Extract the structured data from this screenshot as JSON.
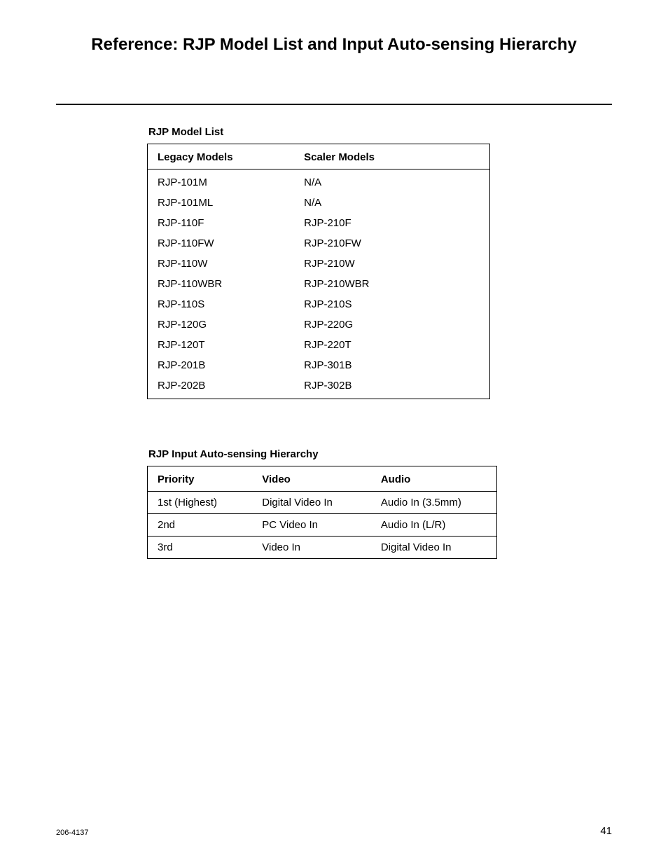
{
  "page": {
    "title": "Reference: RJP Model List and Input Auto-sensing Hierarchy",
    "doc_number": "206-4137",
    "page_number": "41"
  },
  "model_list": {
    "title": "RJP Model List",
    "columns": [
      "Legacy Models",
      "Scaler Models"
    ],
    "rows": [
      [
        "RJP-101M",
        "N/A"
      ],
      [
        "RJP-101ML",
        "N/A"
      ],
      [
        "RJP-110F",
        "RJP-210F"
      ],
      [
        "RJP-110FW",
        "RJP-210FW"
      ],
      [
        "RJP-110W",
        "RJP-210W"
      ],
      [
        "RJP-110WBR",
        "RJP-210WBR"
      ],
      [
        "RJP-110S",
        "RJP-210S"
      ],
      [
        "RJP-120G",
        "RJP-220G"
      ],
      [
        "RJP-120T",
        "RJP-220T"
      ],
      [
        "RJP-201B",
        "RJP-301B"
      ],
      [
        "RJP-202B",
        "RJP-302B"
      ]
    ]
  },
  "hierarchy": {
    "title": "RJP Input Auto-sensing Hierarchy",
    "columns": [
      "Priority",
      "Video",
      "Audio"
    ],
    "rows": [
      [
        "1st (Highest)",
        "Digital Video In",
        "Audio In (3.5mm)"
      ],
      [
        "2nd",
        "PC Video In",
        "Audio In (L/R)"
      ],
      [
        "3rd",
        "Video In",
        "Digital Video In"
      ]
    ]
  }
}
